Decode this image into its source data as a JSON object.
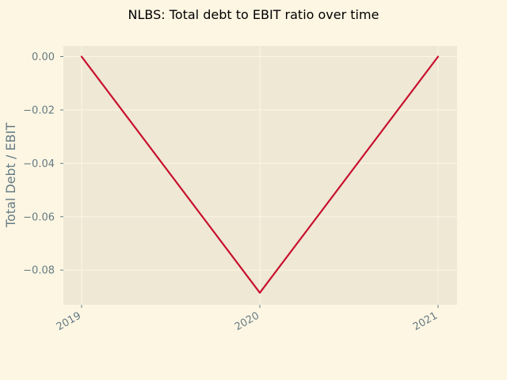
{
  "colors": {
    "figure_background": "#fdf6e3",
    "plot_background": "#eee8d5",
    "grid": "#fdf6e3",
    "tick": "#657b83",
    "line": "#c8102e"
  },
  "chart_data": {
    "type": "line",
    "title": "NLBS: Total debt to EBIT ratio over time",
    "xlabel": "",
    "ylabel": "Total Debt / EBIT",
    "x": [
      "2019",
      "2020",
      "2021"
    ],
    "series": [
      {
        "values": [
          0.0,
          -0.0885,
          0.0
        ]
      }
    ],
    "xlim": [
      "2019",
      "2021"
    ],
    "ylim": [
      -0.093,
      0.004
    ],
    "yticks": [
      0.0,
      -0.02,
      -0.04,
      -0.06,
      -0.08
    ],
    "ytick_labels": [
      "0.00",
      "−0.02",
      "−0.04",
      "−0.06",
      "−0.08"
    ],
    "xtick_labels": [
      "2019",
      "2020",
      "2021"
    ],
    "grid": true,
    "legend": "none"
  }
}
